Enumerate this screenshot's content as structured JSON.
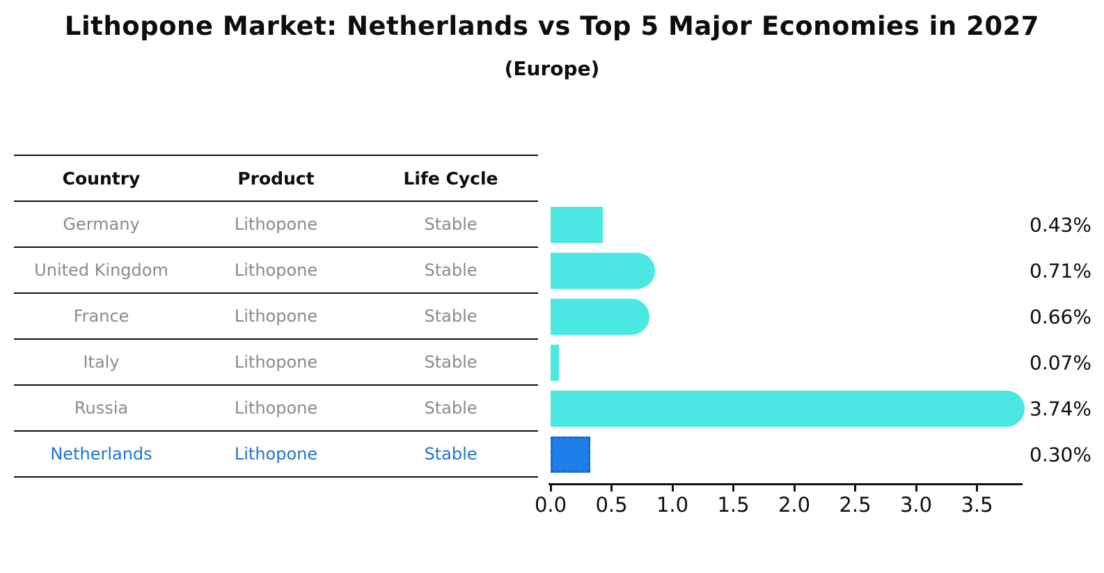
{
  "title": "Lithopone Market: Netherlands vs Top 5 Major Economies in 2027",
  "subtitle": "(Europe)",
  "table": {
    "headers": [
      "Country",
      "Product",
      "Life Cycle"
    ],
    "rows": [
      {
        "country": "Germany",
        "product": "Lithopone",
        "life_cycle": "Stable",
        "highlight": false
      },
      {
        "country": "United Kingdom",
        "product": "Lithopone",
        "life_cycle": "Stable",
        "highlight": false
      },
      {
        "country": "France",
        "product": "Lithopone",
        "life_cycle": "Stable",
        "highlight": false
      },
      {
        "country": "Italy",
        "product": "Lithopone",
        "life_cycle": "Stable",
        "highlight": false
      },
      {
        "country": "Russia",
        "product": "Lithopone",
        "life_cycle": "Stable",
        "highlight": false
      },
      {
        "country": "Netherlands",
        "product": "Lithopone",
        "life_cycle": "Stable",
        "highlight": true
      }
    ]
  },
  "chart_data": {
    "type": "bar",
    "orientation": "horizontal",
    "title": "Lithopone Market: Netherlands vs Top 5 Major Economies in 2027",
    "subtitle": "(Europe)",
    "categories": [
      "Germany",
      "United Kingdom",
      "France",
      "Italy",
      "Russia",
      "Netherlands"
    ],
    "values": [
      0.43,
      0.71,
      0.66,
      0.07,
      3.74,
      0.3
    ],
    "value_labels": [
      "0.43%",
      "0.71%",
      "0.66%",
      "0.07%",
      "3.74%",
      "0.30%"
    ],
    "bar_shapes": [
      "plain",
      "rounded",
      "rounded",
      "plain",
      "rounded",
      "dashed"
    ],
    "xtick_labels": [
      "0.0",
      "0.5",
      "1.0",
      "1.5",
      "2.0",
      "2.5",
      "3.0",
      "3.5"
    ],
    "xtick_values": [
      0.0,
      0.5,
      1.0,
      1.5,
      2.0,
      2.5,
      3.0,
      3.5
    ],
    "xlim": [
      0,
      3.88
    ],
    "grid": false,
    "legend": false,
    "colors": {
      "bar_default": "#4be8e3",
      "bar_highlight_fill": "#1e7fe8",
      "bar_highlight_border": "#1565d2",
      "highlight_text": "#1e74d2",
      "row_text": "#8a8a8a",
      "axis_text": "#0d0d0d"
    }
  }
}
